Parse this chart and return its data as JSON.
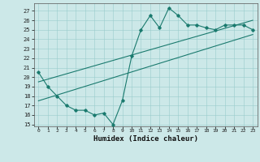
{
  "xlabel": "Humidex (Indice chaleur)",
  "xlim": [
    -0.5,
    23.5
  ],
  "ylim": [
    14.8,
    27.8
  ],
  "yticks": [
    15,
    16,
    17,
    18,
    19,
    20,
    21,
    22,
    23,
    24,
    25,
    26,
    27
  ],
  "xticks": [
    0,
    1,
    2,
    3,
    4,
    5,
    6,
    7,
    8,
    9,
    10,
    11,
    12,
    13,
    14,
    15,
    16,
    17,
    18,
    19,
    20,
    21,
    22,
    23
  ],
  "bg_color": "#cce8e8",
  "grid_color": "#99cccc",
  "line_color": "#1a7a6e",
  "data_line": [
    20.5,
    19.0,
    18.0,
    17.0,
    16.5,
    16.5,
    16.0,
    16.2,
    15.0,
    17.5,
    22.2,
    25.0,
    26.5,
    25.2,
    27.3,
    26.5,
    25.5,
    25.5,
    25.2,
    25.0,
    25.5,
    25.5,
    25.5,
    25.0
  ],
  "trend1_x": [
    0,
    23
  ],
  "trend1_y": [
    19.5,
    26.0
  ],
  "trend2_x": [
    0,
    23
  ],
  "trend2_y": [
    17.5,
    24.5
  ]
}
